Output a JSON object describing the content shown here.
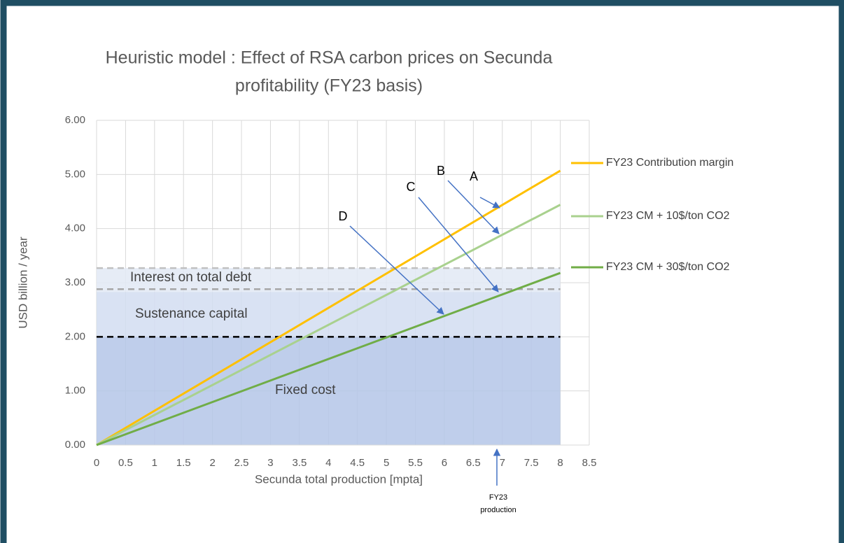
{
  "chart_data": {
    "type": "line",
    "title": [
      "Heuristic model : Effect of RSA carbon prices on Secunda",
      "profitability (FY23 basis)"
    ],
    "x_label": "Secunda total production [mpta]",
    "y_label": "USD billion / year",
    "xlim": [
      0,
      8.5
    ],
    "ylim": [
      0,
      6
    ],
    "xticks": [
      0,
      0.5,
      1,
      1.5,
      2,
      2.5,
      3,
      3.5,
      4,
      4.5,
      5,
      5.5,
      6,
      6.5,
      7,
      7.5,
      8,
      8.5
    ],
    "yticks": [
      {
        "value": 0,
        "label": "0.00"
      },
      {
        "value": 1,
        "label": "1.00"
      },
      {
        "value": 2,
        "label": "2.00"
      },
      {
        "value": 3,
        "label": "3.00"
      },
      {
        "value": 4,
        "label": "4.00"
      },
      {
        "value": 5,
        "label": "5.00"
      },
      {
        "value": 6,
        "label": "6.00"
      }
    ],
    "grid": true,
    "x": [
      0,
      8
    ],
    "series": [
      {
        "name": "FY23 Contribution margin",
        "color": "#ffc000",
        "values": [
          0,
          5.07
        ]
      },
      {
        "name": "FY23 CM + 10$/ton CO2",
        "color": "#a9d18e",
        "values": [
          0,
          4.44
        ]
      },
      {
        "name": "FY23 CM + 30$/ton CO2",
        "color": "#70ad47",
        "values": [
          0,
          3.18
        ]
      }
    ],
    "bands": {
      "x": [
        0,
        8
      ],
      "items": [
        {
          "label": "Fixed cost",
          "from": 0,
          "to": 2,
          "color": "#b4c6e7"
        },
        {
          "label": "Sustenance capital",
          "from": 2,
          "to": 2.83,
          "color": "#d2ddf1"
        },
        {
          "label": "Interest on total debt",
          "from": 2.83,
          "to": 3.27,
          "color": "#e2e9f5"
        }
      ]
    },
    "reference_lines": [
      {
        "value": 2,
        "color": "#000000"
      },
      {
        "value": 2.88,
        "color": "#a6a6a6"
      },
      {
        "value": 3.27,
        "color": "#c0c0c0"
      }
    ],
    "annotations": [
      "A",
      "B",
      "C",
      "D"
    ],
    "marker_note": [
      "FY23",
      "production"
    ]
  }
}
